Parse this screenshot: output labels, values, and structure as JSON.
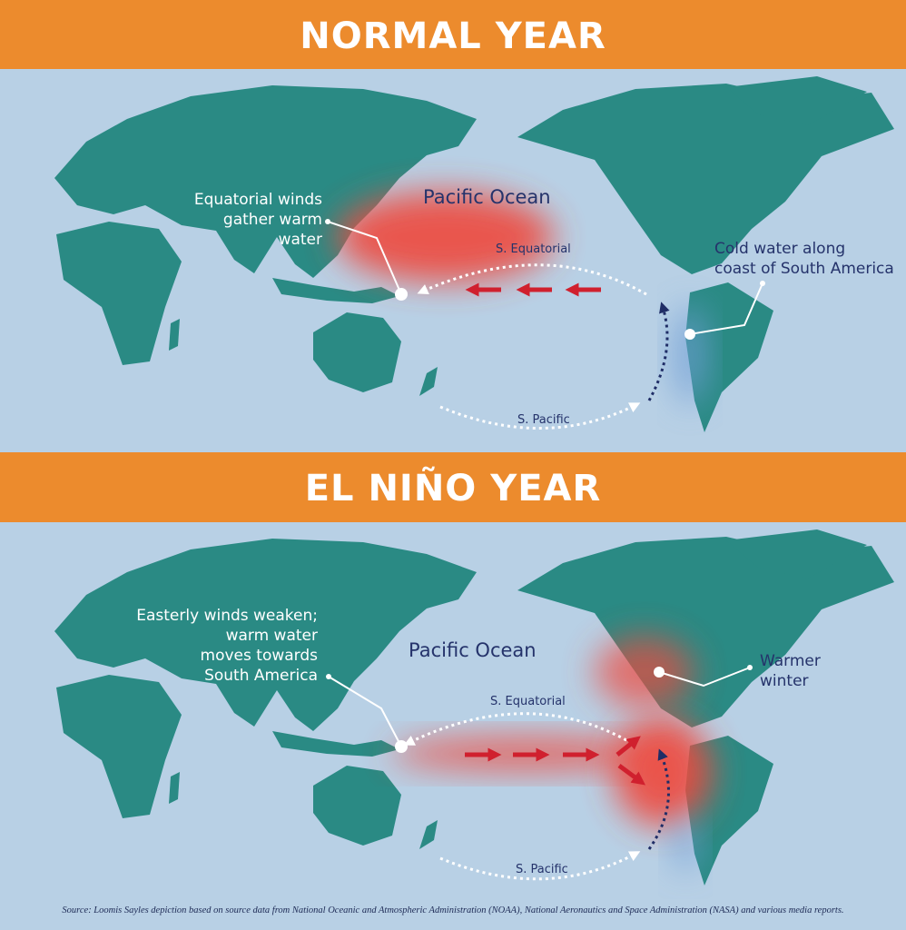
{
  "colors": {
    "ocean": "#b8d0e5",
    "land": "#2a8a84",
    "banner": "#ec8b2d",
    "warm": "#ef4a3c",
    "cold": "#6f9fd6",
    "arrow": "#d0202e",
    "label_dark": "#25336b"
  },
  "normal": {
    "title": "NORMAL YEAR",
    "ocean_label": "Pacific Ocean",
    "callout_west": [
      "Equatorial winds",
      "gather warm water"
    ],
    "callout_east": [
      "Cold water along",
      "coast of South America"
    ],
    "current_north": "S. Equatorial",
    "current_south": "S. Pacific"
  },
  "elnino": {
    "title": "EL NIÑO YEAR",
    "ocean_label": "Pacific Ocean",
    "callout_west": [
      "Easterly winds weaken;",
      "warm water",
      "moves towards",
      "South America"
    ],
    "callout_east": [
      "Warmer",
      "winter"
    ],
    "current_north": "S. Equatorial",
    "current_south": "S. Pacific"
  },
  "source": "Source: Loomis Sayles depiction based on source data from National Oceanic and Atmospheric Administration (NOAA), National Aeronautics and Space Administration (NASA) and various media reports."
}
